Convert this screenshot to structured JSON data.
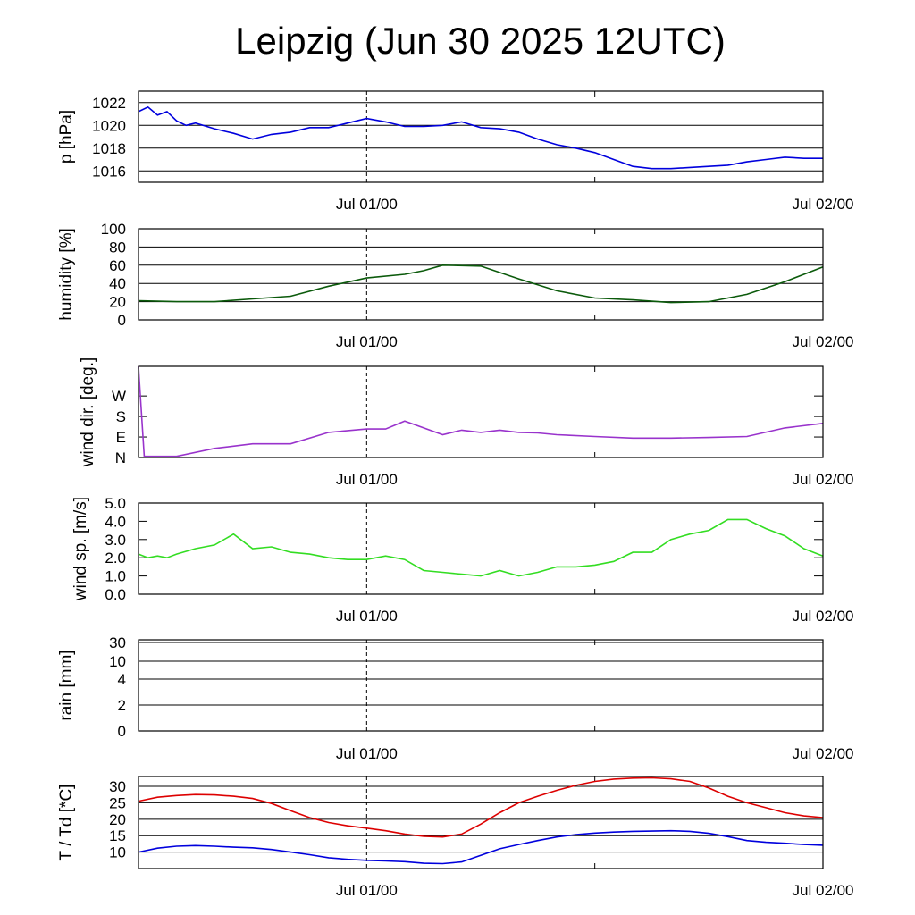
{
  "title": "Leipzig (Jun 30 2025 12UTC)",
  "chart_data": [
    {
      "type": "line",
      "ylabel": "p [hPa]",
      "ylim": [
        1015,
        1023
      ],
      "yticks": [
        1016,
        1018,
        1020,
        1022
      ],
      "yticklabels": [
        "1016",
        "1018",
        "1020",
        "1022"
      ],
      "xticklabels": [
        "Jul 01/00",
        "Jul 02/00"
      ],
      "grid": true,
      "series": [
        {
          "color": "#0000dd",
          "x": [
            0,
            0.5,
            1,
            1.5,
            2,
            2.5,
            3,
            4,
            5,
            6,
            7,
            8,
            9,
            10,
            11,
            12,
            13,
            14,
            15,
            16,
            17,
            18,
            19,
            20,
            21,
            22,
            23,
            24,
            25,
            26,
            27,
            28,
            29,
            30,
            31,
            32,
            33,
            34,
            35,
            36
          ],
          "y": [
            1021.2,
            1021.6,
            1020.9,
            1021.2,
            1020.4,
            1020.0,
            1020.2,
            1019.7,
            1019.3,
            1018.8,
            1019.2,
            1019.4,
            1019.8,
            1019.8,
            1020.2,
            1020.6,
            1020.3,
            1019.9,
            1019.9,
            1020.0,
            1020.3,
            1019.8,
            1019.7,
            1019.4,
            1018.8,
            1018.3,
            1018.0,
            1017.6,
            1017.0,
            1016.4,
            1016.2,
            1016.2,
            1016.3,
            1016.4,
            1016.5,
            1016.8,
            1017.0,
            1017.2,
            1017.1,
            1017.1
          ]
        }
      ]
    },
    {
      "type": "line",
      "ylabel": "humidity [%]",
      "ylim": [
        0,
        100
      ],
      "yticks": [
        0,
        20,
        40,
        60,
        80,
        100
      ],
      "yticklabels": [
        "0",
        "20",
        "40",
        "60",
        "80",
        "100"
      ],
      "xticklabels": [
        "Jul 01/00",
        "Jul 02/00"
      ],
      "grid": true,
      "series": [
        {
          "color": "#0b5a0b",
          "x": [
            0,
            2,
            4,
            6,
            8,
            10,
            12,
            14,
            15,
            16,
            18,
            20,
            22,
            24,
            26,
            28,
            30,
            32,
            34,
            36
          ],
          "y": [
            21,
            20,
            20,
            23,
            26,
            37,
            46,
            50,
            54,
            60,
            59,
            45,
            32,
            24,
            22,
            19,
            20,
            28,
            42,
            58
          ]
        }
      ]
    },
    {
      "type": "line",
      "ylabel": "wind dir. [deg.]",
      "ylim": [
        0,
        400
      ],
      "yticks": [
        0,
        90,
        180,
        270
      ],
      "yticklabels": [
        "N",
        "E",
        "S",
        "W"
      ],
      "xticklabels": [
        "Jul 01/00",
        "Jul 02/00"
      ],
      "grid": false,
      "series": [
        {
          "color": "#9933cc",
          "x": [
            0,
            0.3,
            1,
            2,
            4,
            6,
            8,
            10,
            12,
            13,
            14,
            15,
            16,
            17,
            18,
            19,
            20,
            21,
            22,
            24,
            26,
            28,
            30,
            32,
            34,
            36
          ],
          "y": [
            400,
            5,
            5,
            5,
            40,
            60,
            60,
            110,
            125,
            125,
            160,
            130,
            100,
            120,
            110,
            120,
            110,
            108,
            100,
            92,
            85,
            85,
            88,
            92,
            130,
            150
          ]
        }
      ]
    },
    {
      "type": "line",
      "ylabel": "wind sp. [m/s]",
      "ylim": [
        0,
        5
      ],
      "yticks": [
        0,
        1,
        2,
        3,
        4,
        5
      ],
      "yticklabels": [
        "0.0",
        "1.0",
        "2.0",
        "3.0",
        "4.0",
        "5.0"
      ],
      "xticklabels": [
        "Jul 01/00",
        "Jul 02/00"
      ],
      "grid": false,
      "series": [
        {
          "color": "#33dd22",
          "x": [
            0,
            0.5,
            1,
            1.5,
            2,
            3,
            4,
            5,
            6,
            7,
            8,
            9,
            10,
            11,
            12,
            13,
            14,
            15,
            16,
            17,
            18,
            19,
            20,
            21,
            22,
            23,
            24,
            25,
            26,
            27,
            28,
            29,
            30,
            31,
            32,
            33,
            34,
            35,
            36
          ],
          "y": [
            2.2,
            2.0,
            2.1,
            2.0,
            2.2,
            2.5,
            2.7,
            3.3,
            2.5,
            2.6,
            2.3,
            2.2,
            2.0,
            1.9,
            1.9,
            2.1,
            1.9,
            1.3,
            1.2,
            1.1,
            1.0,
            1.3,
            1.0,
            1.2,
            1.5,
            1.5,
            1.6,
            1.8,
            2.3,
            2.3,
            3.0,
            3.3,
            3.5,
            4.1,
            4.1,
            3.6,
            3.2,
            2.5,
            2.1
          ]
        }
      ]
    },
    {
      "type": "bar",
      "ylabel": "rain [mm]",
      "ylim": [
        0,
        30
      ],
      "yticks": [
        0,
        2,
        4,
        10,
        30
      ],
      "yticklabels": [
        "0",
        "2",
        "4",
        "10",
        "30"
      ],
      "xticklabels": [
        "Jul 01/00",
        "Jul 02/00"
      ],
      "grid": true,
      "values": []
    },
    {
      "type": "line",
      "ylabel": "T / Td [*C]",
      "ylim": [
        5,
        33
      ],
      "yticks": [
        10,
        15,
        20,
        25,
        30
      ],
      "yticklabels": [
        "10",
        "15",
        "20",
        "25",
        "30"
      ],
      "xticklabels": [
        "Jul 01/00",
        "Jul 02/00"
      ],
      "grid": true,
      "series": [
        {
          "color": "#dd0000",
          "x": [
            0,
            1,
            2,
            3,
            4,
            5,
            6,
            7,
            8,
            9,
            10,
            11,
            12,
            13,
            14,
            15,
            16,
            17,
            18,
            19,
            20,
            21,
            22,
            23,
            24,
            25,
            26,
            27,
            28,
            29,
            30,
            31,
            32,
            33,
            34,
            35,
            36
          ],
          "y": [
            25.5,
            26.7,
            27.2,
            27.5,
            27.4,
            27.0,
            26.3,
            24.8,
            22.6,
            20.5,
            19.0,
            18.0,
            17.3,
            16.5,
            15.5,
            14.8,
            14.6,
            15.5,
            18.5,
            22.0,
            25.0,
            27.0,
            28.8,
            30.3,
            31.5,
            32.2,
            32.5,
            32.6,
            32.3,
            31.5,
            29.5,
            27.0,
            25.0,
            23.5,
            22.0,
            21.0,
            20.5
          ]
        },
        {
          "color": "#0000dd",
          "x": [
            0,
            1,
            2,
            3,
            4,
            5,
            6,
            7,
            8,
            9,
            10,
            11,
            12,
            13,
            14,
            15,
            16,
            17,
            18,
            19,
            20,
            21,
            22,
            23,
            24,
            25,
            26,
            27,
            28,
            29,
            30,
            31,
            32,
            33,
            34,
            35,
            36
          ],
          "y": [
            10.0,
            11.2,
            11.8,
            12.0,
            11.8,
            11.5,
            11.3,
            10.8,
            10.0,
            9.2,
            8.3,
            7.8,
            7.5,
            7.3,
            7.1,
            6.6,
            6.5,
            7.0,
            9.0,
            11.0,
            12.3,
            13.5,
            14.6,
            15.3,
            15.8,
            16.1,
            16.3,
            16.4,
            16.5,
            16.3,
            15.7,
            14.7,
            13.5,
            13.0,
            12.7,
            12.3,
            12.1
          ]
        }
      ]
    }
  ]
}
